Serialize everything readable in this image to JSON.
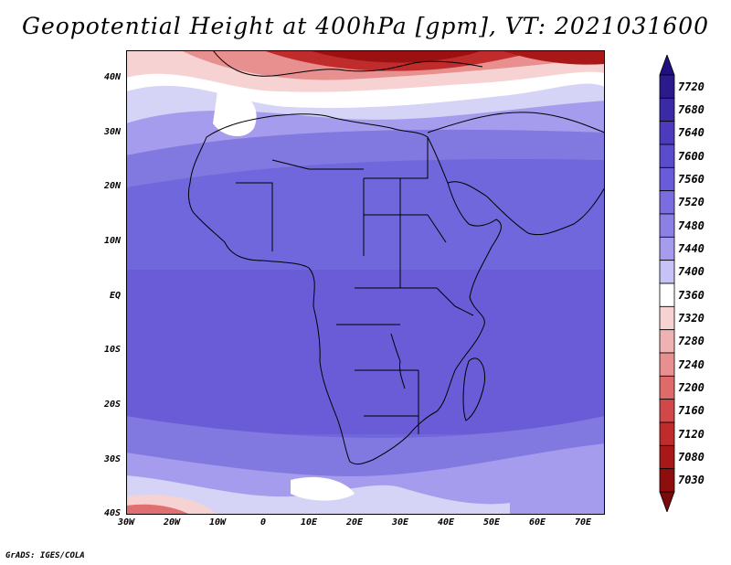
{
  "title": "Geopotential Height at 400hPa [gpm], VT: 2021031600",
  "footer": "GrADS: IGES/COLA",
  "map": {
    "variable": "Geopotential Height",
    "level": "400hPa",
    "units": "gpm",
    "valid_time": "2021031600",
    "lon_range": [
      -30,
      75
    ],
    "lat_range": [
      -40,
      45
    ],
    "lat_ticks": [
      "40N",
      "30N",
      "20N",
      "10N",
      "EQ",
      "10S",
      "20S",
      "30S",
      "40S"
    ],
    "lon_ticks": [
      "30W",
      "20W",
      "10W",
      "0",
      "10E",
      "20E",
      "30E",
      "40E",
      "50E",
      "60E",
      "70E"
    ]
  },
  "colorbar": {
    "labels": [
      "7720",
      "7680",
      "7640",
      "7600",
      "7560",
      "7520",
      "7480",
      "7440",
      "7400",
      "7360",
      "7320",
      "7280",
      "7240",
      "7200",
      "7160",
      "7120",
      "7080",
      "7030"
    ],
    "colors": [
      "#2a1a8c",
      "#3b2aa6",
      "#4c3cbd",
      "#5a4ccc",
      "#6a5cd8",
      "#7a6ddf",
      "#8b80e6",
      "#a59cee",
      "#c8c3f6",
      "#ffffff",
      "#f6d2d2",
      "#efb2b2",
      "#e88f8f",
      "#df6a6a",
      "#d24848",
      "#c02c2c",
      "#a81818",
      "#8e0e0e"
    ],
    "top_arrow_color": "#1e1080",
    "bottom_arrow_color": "#7a0a0a"
  },
  "field_colors": {
    "low_north": "#9b1010",
    "mid_north": "#e07070",
    "light_red": "#f4c4c4",
    "white": "#ffffff",
    "pale_blue": "#d6d4f6",
    "lavender": "#a9a2ee",
    "medium_blue": "#8076e0",
    "deep_blue": "#6a5cd6"
  }
}
